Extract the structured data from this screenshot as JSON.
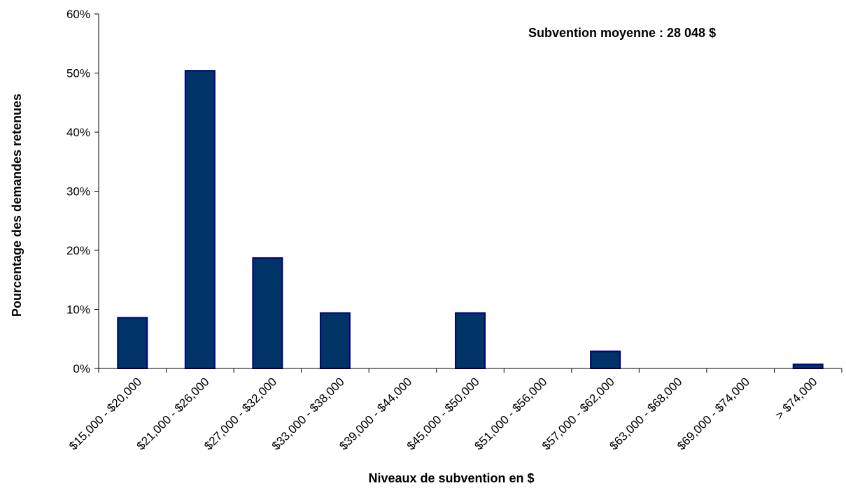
{
  "chart_data": {
    "type": "bar",
    "title": "",
    "xlabel": "Niveaux de subvention en $",
    "ylabel": "Pourcentage des demandes retenues",
    "annotation": "Subvention moyenne :  28 048 $",
    "categories": [
      "$15,000 - $20,000",
      "$21,000 - $26,000",
      "$27,000 - $32,000",
      "$33,000 - $38,000",
      "$39,000 - $44,000",
      "$45,000 - $50,000",
      "$51,000 - $56,000",
      "$57,000 - $62,000",
      "$63,000 - $68,000",
      "$69,000 - $74,000",
      "> $74,000"
    ],
    "values": [
      8.6,
      50.4,
      18.7,
      9.4,
      0,
      9.4,
      0,
      2.9,
      0,
      0,
      0.7
    ],
    "ylim": [
      0,
      60
    ],
    "yticks": [
      0,
      10,
      20,
      30,
      40,
      50,
      60
    ],
    "ytick_labels": [
      "0%",
      "10%",
      "20%",
      "30%",
      "40%",
      "50%",
      "60%"
    ],
    "grid": false,
    "legend": "none",
    "bar_color": "#003366",
    "bar_edge_color": "#000080"
  }
}
